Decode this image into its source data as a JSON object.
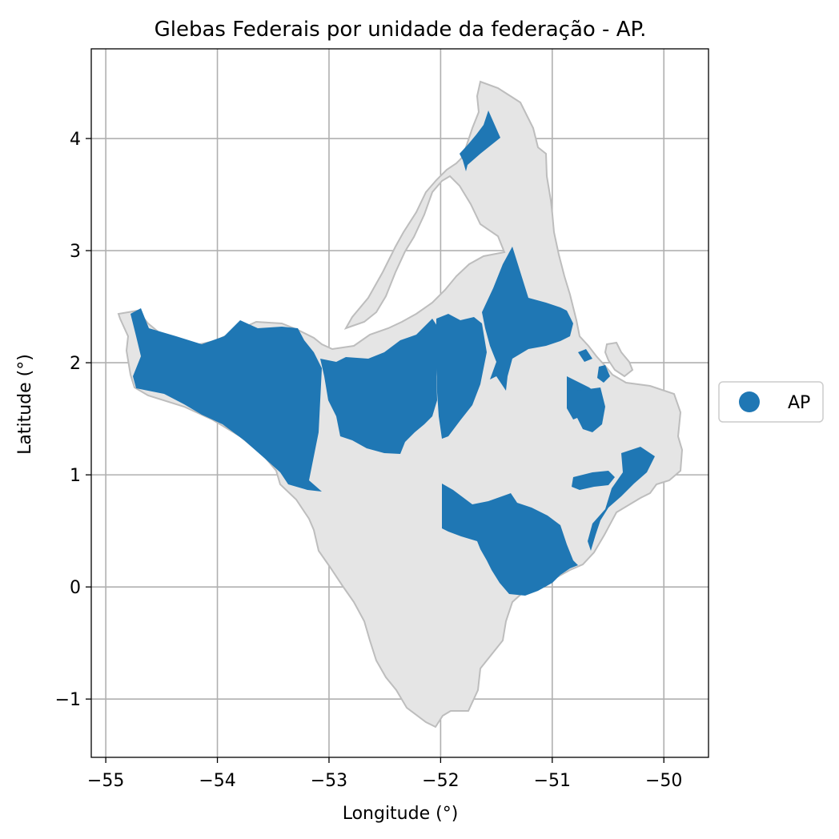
{
  "chart_data": {
    "type": "map",
    "title": "Glebas Federais por unidade da federação - AP.",
    "xlabel": "Longitude (°)",
    "ylabel": "Latitude (°)",
    "xlim": [
      -55.13,
      -49.6
    ],
    "ylim": [
      -1.52,
      4.8
    ],
    "x_ticks": [
      -55,
      -54,
      -53,
      -52,
      -51,
      -50
    ],
    "x_tick_labels": [
      "−55",
      "−54",
      "−53",
      "−52",
      "−51",
      "−50"
    ],
    "y_ticks": [
      -1,
      0,
      1,
      2,
      3,
      4
    ],
    "y_tick_labels": [
      "−1",
      "0",
      "1",
      "2",
      "3",
      "4"
    ],
    "grid": true,
    "legend": {
      "position": "right-center",
      "entries": [
        {
          "label": "AP",
          "color": "#1f77b4",
          "marker": "circle"
        }
      ]
    },
    "colors": {
      "state_fill": "#e5e5e5",
      "state_edge": "#bdbdbd",
      "glebas_fill": "#1f77b4"
    }
  }
}
